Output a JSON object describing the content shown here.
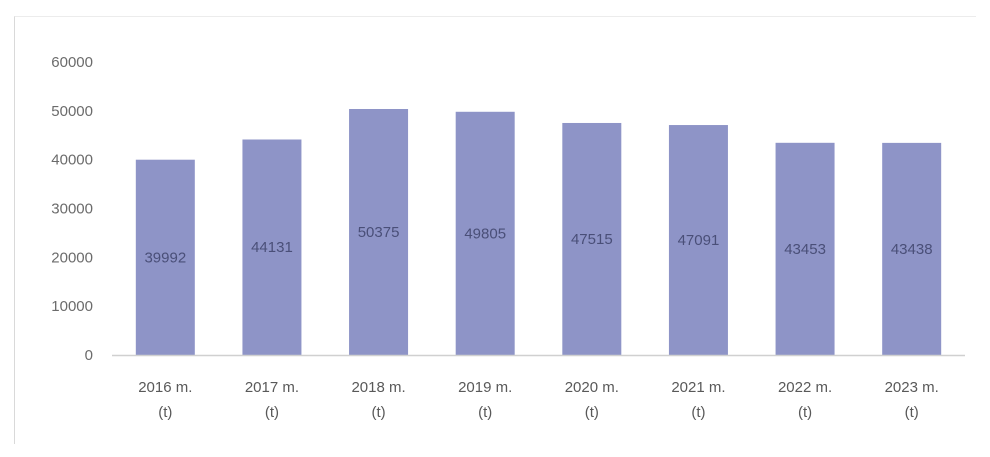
{
  "chart_data": {
    "type": "bar",
    "title": "",
    "xlabel": "",
    "ylabel": "",
    "categories": [
      [
        "2016  m.",
        "(t)"
      ],
      [
        "2017 m.",
        "(t)"
      ],
      [
        "2018 m.",
        "(t)"
      ],
      [
        "2019 m.",
        "(t)"
      ],
      [
        "2020 m.",
        "(t)"
      ],
      [
        "2021 m.",
        "(t)"
      ],
      [
        "2022 m.",
        "(t)"
      ],
      [
        "2023 m.",
        "(t)"
      ]
    ],
    "values": [
      39992,
      44131,
      50375,
      49805,
      47515,
      47091,
      43453,
      43438
    ],
    "data_labels": [
      "39992",
      "44131",
      "50375",
      "49805",
      "47515",
      "47091",
      "43453",
      "43438"
    ],
    "ylim": [
      0,
      60000
    ],
    "yticks": [
      0,
      10000,
      20000,
      30000,
      40000,
      50000,
      60000
    ],
    "ytick_labels": [
      "0",
      "10000",
      "20000",
      "30000",
      "40000",
      "50000",
      "60000"
    ],
    "grid": false,
    "legend": "none",
    "colors": {
      "bar": "#8e94c7",
      "axis": "#d0d0d0",
      "tick_text": "#6b6b6b",
      "data_label_text": "#4a4f78"
    }
  }
}
